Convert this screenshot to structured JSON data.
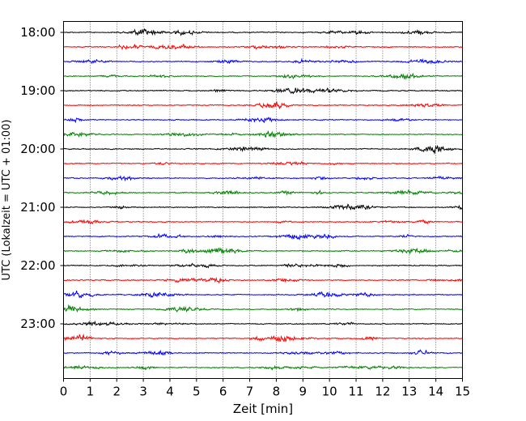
{
  "chart_data": {
    "type": "line",
    "subtype": "helicorder",
    "xlabel": "Zeit  [min]",
    "ylabel": "UTC (Lokalzeit = UTC + 01:00)",
    "xlim": [
      0,
      15
    ],
    "xticks": [
      "0",
      "1",
      "2",
      "3",
      "4",
      "5",
      "6",
      "7",
      "8",
      "9",
      "10",
      "11",
      "12",
      "13",
      "14",
      "15"
    ],
    "yticks": [
      {
        "label": "18:00",
        "trace": 0
      },
      {
        "label": "19:00",
        "trace": 4
      },
      {
        "label": "20:00",
        "trace": 8
      },
      {
        "label": "21:00",
        "trace": 12
      },
      {
        "label": "22:00",
        "trace": 16
      },
      {
        "label": "23:00",
        "trace": 20
      }
    ],
    "trace_count": 24,
    "minutes_per_trace": 15,
    "color_cycle": [
      "#000000",
      "#ff0000",
      "#0000ff",
      "#008000"
    ],
    "grid": "vertical dotted lines at each minute",
    "legend": "none"
  }
}
